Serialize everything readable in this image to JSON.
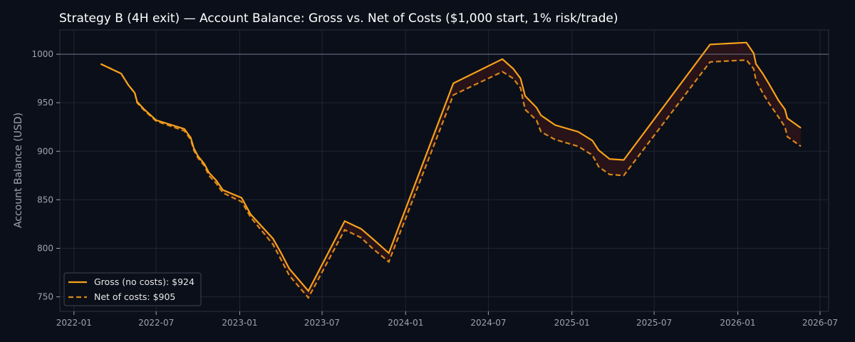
{
  "chart_data": {
    "type": "line",
    "title": "Strategy B (4H exit) — Account Balance: Gross vs. Net of Costs ($1,000 start, 1% risk/trade)",
    "xlabel": "",
    "ylabel": "Account Balance (USD)",
    "xlim": [
      "2021-12-01",
      "2026-07-20"
    ],
    "ylim": [
      735,
      1025
    ],
    "x_ticks": [
      "2022-01",
      "2022-07",
      "2023-01",
      "2023-07",
      "2024-01",
      "2024-07",
      "2025-01",
      "2025-07",
      "2026-01",
      "2026-07"
    ],
    "y_ticks": [
      750,
      800,
      850,
      900,
      950,
      1000
    ],
    "reference_line": 1000,
    "grid": true,
    "legend_position": "bottom-left",
    "colors": {
      "background": "#0b0f19",
      "grid": "#1e2533",
      "gross": "#f7a21b",
      "net": "#d9861a",
      "fill": "#2a1418",
      "reference": "#5a6275"
    },
    "series": [
      {
        "name": "Gross (no costs): $924",
        "style": "solid",
        "points": [
          [
            "2022-03-01",
            990
          ],
          [
            "2022-04-15",
            980
          ],
          [
            "2022-05-01",
            968
          ],
          [
            "2022-05-15",
            960
          ],
          [
            "2022-05-20",
            951
          ],
          [
            "2022-06-05",
            943
          ],
          [
            "2022-07-01",
            932
          ],
          [
            "2022-09-01",
            923
          ],
          [
            "2022-09-15",
            914
          ],
          [
            "2022-09-22",
            903
          ],
          [
            "2022-10-01",
            895
          ],
          [
            "2022-10-15",
            887
          ],
          [
            "2022-10-25",
            878
          ],
          [
            "2022-11-10",
            870
          ],
          [
            "2022-11-25",
            860
          ],
          [
            "2023-01-05",
            852
          ],
          [
            "2023-01-25",
            835
          ],
          [
            "2023-03-15",
            810
          ],
          [
            "2023-04-01",
            796
          ],
          [
            "2023-04-20",
            779
          ],
          [
            "2023-06-01",
            756
          ],
          [
            "2023-08-20",
            828
          ],
          [
            "2023-09-25",
            820
          ],
          [
            "2023-10-20",
            810
          ],
          [
            "2023-11-25",
            795
          ],
          [
            "2024-04-15",
            970
          ],
          [
            "2024-08-01",
            995
          ],
          [
            "2024-08-25",
            985
          ],
          [
            "2024-09-10",
            975
          ],
          [
            "2024-09-20",
            957
          ],
          [
            "2024-10-15",
            945
          ],
          [
            "2024-10-25",
            937
          ],
          [
            "2024-11-25",
            927
          ],
          [
            "2025-01-15",
            920
          ],
          [
            "2025-02-15",
            911
          ],
          [
            "2025-03-01",
            901
          ],
          [
            "2025-03-25",
            892
          ],
          [
            "2025-04-25",
            891
          ],
          [
            "2025-11-01",
            1010
          ],
          [
            "2026-01-20",
            1012
          ],
          [
            "2026-02-05",
            1001
          ],
          [
            "2026-02-10",
            990
          ],
          [
            "2026-02-25",
            980
          ],
          [
            "2026-03-10",
            970
          ],
          [
            "2026-04-01",
            952
          ],
          [
            "2026-04-15",
            943
          ],
          [
            "2026-04-20",
            934
          ],
          [
            "2026-05-20",
            924
          ]
        ]
      },
      {
        "name": "Net of costs: $905",
        "style": "dashed",
        "points": [
          [
            "2022-03-01",
            990
          ],
          [
            "2022-04-15",
            980
          ],
          [
            "2022-05-01",
            968
          ],
          [
            "2022-05-15",
            960
          ],
          [
            "2022-05-20",
            950
          ],
          [
            "2022-06-05",
            942
          ],
          [
            "2022-07-01",
            931
          ],
          [
            "2022-09-01",
            921
          ],
          [
            "2022-09-15",
            912
          ],
          [
            "2022-09-22",
            901
          ],
          [
            "2022-10-01",
            893
          ],
          [
            "2022-10-15",
            885
          ],
          [
            "2022-10-25",
            875
          ],
          [
            "2022-11-10",
            867
          ],
          [
            "2022-11-25",
            857
          ],
          [
            "2023-01-05",
            848
          ],
          [
            "2023-01-25",
            832
          ],
          [
            "2023-03-15",
            804
          ],
          [
            "2023-04-01",
            789
          ],
          [
            "2023-04-20",
            772
          ],
          [
            "2023-06-01",
            749
          ],
          [
            "2023-08-20",
            819
          ],
          [
            "2023-09-25",
            811
          ],
          [
            "2023-10-20",
            800
          ],
          [
            "2023-11-25",
            786
          ],
          [
            "2024-04-15",
            958
          ],
          [
            "2024-08-01",
            982
          ],
          [
            "2024-08-25",
            975
          ],
          [
            "2024-09-10",
            965
          ],
          [
            "2024-09-20",
            943
          ],
          [
            "2024-10-15",
            932
          ],
          [
            "2024-10-25",
            920
          ],
          [
            "2024-11-25",
            912
          ],
          [
            "2025-01-15",
            905
          ],
          [
            "2025-02-15",
            896
          ],
          [
            "2025-03-01",
            884
          ],
          [
            "2025-03-25",
            876
          ],
          [
            "2025-04-25",
            875
          ],
          [
            "2025-11-01",
            992
          ],
          [
            "2026-01-20",
            994
          ],
          [
            "2026-02-05",
            985
          ],
          [
            "2026-02-10",
            973
          ],
          [
            "2026-02-25",
            960
          ],
          [
            "2026-03-10",
            950
          ],
          [
            "2026-04-01",
            935
          ],
          [
            "2026-04-15",
            925
          ],
          [
            "2026-04-20",
            915
          ],
          [
            "2026-05-20",
            905
          ]
        ]
      }
    ]
  }
}
